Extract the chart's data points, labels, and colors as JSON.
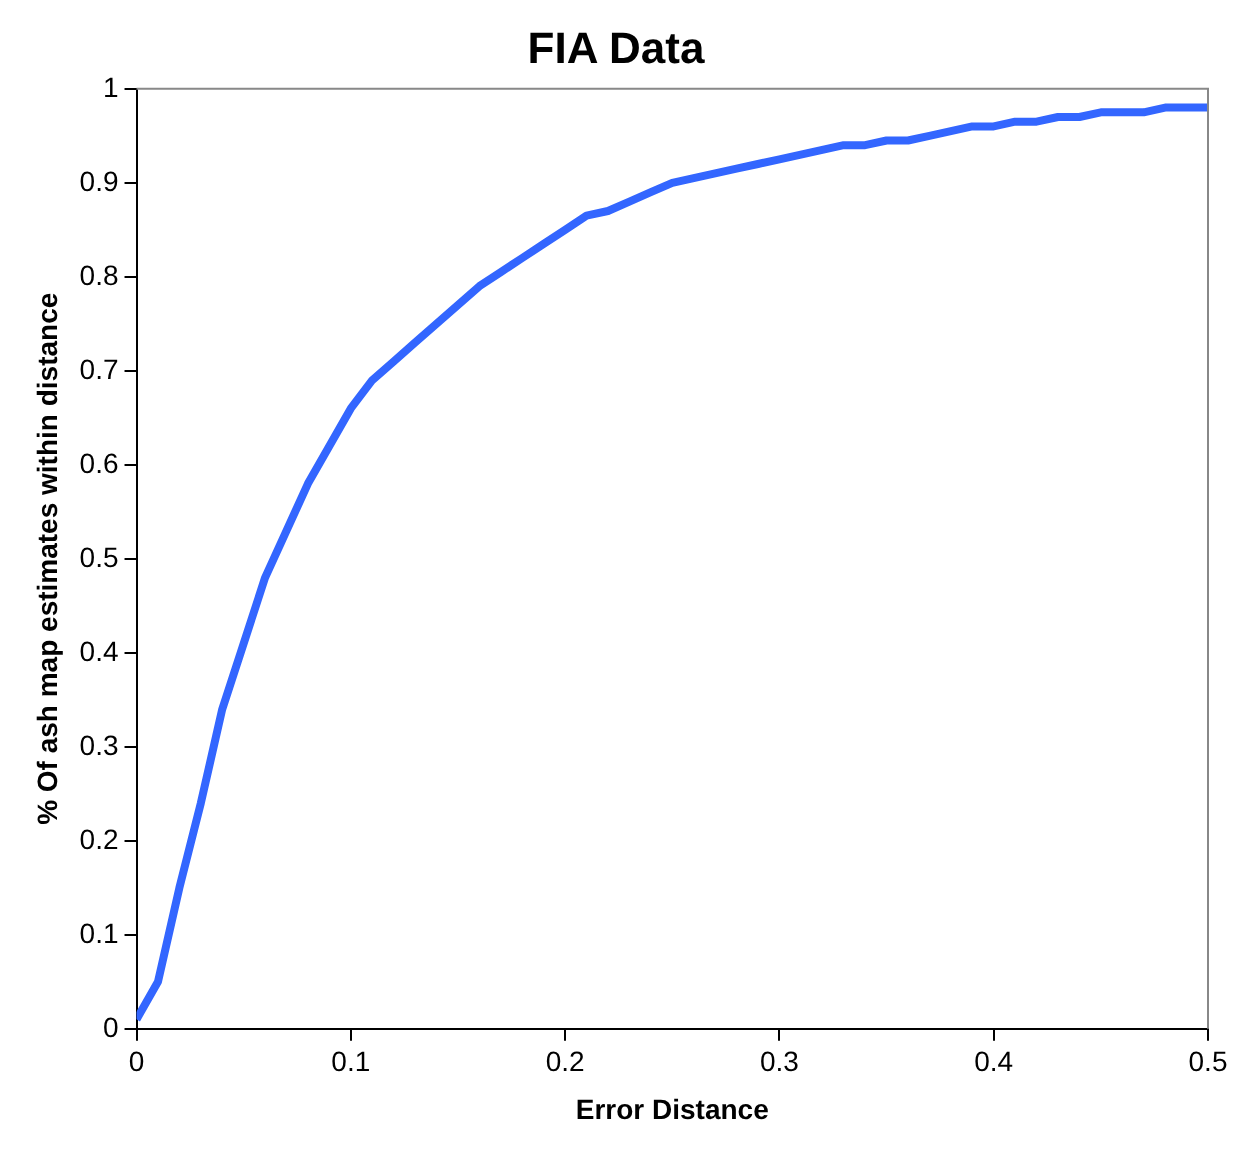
{
  "chart_data": {
    "type": "line",
    "title": "FIA Data",
    "xlabel": "Error Distance",
    "ylabel": "% Of ash map estimates within distance",
    "x": [
      0,
      0.01,
      0.02,
      0.03,
      0.04,
      0.05,
      0.06,
      0.07,
      0.08,
      0.09,
      0.1,
      0.11,
      0.12,
      0.13,
      0.14,
      0.15,
      0.16,
      0.17,
      0.18,
      0.19,
      0.2,
      0.21,
      0.22,
      0.23,
      0.24,
      0.25,
      0.26,
      0.27,
      0.28,
      0.29,
      0.3,
      0.31,
      0.32,
      0.33,
      0.34,
      0.35,
      0.36,
      0.37,
      0.38,
      0.39,
      0.4,
      0.41,
      0.42,
      0.43,
      0.44,
      0.45,
      0.46,
      0.47,
      0.48,
      0.49,
      0.5
    ],
    "series": [
      {
        "color": "#3366ff",
        "values": [
          0.01,
          0.05,
          0.15,
          0.24,
          0.34,
          0.41,
          0.48,
          0.53,
          0.58,
          0.62,
          0.66,
          0.69,
          0.71,
          0.73,
          0.75,
          0.77,
          0.79,
          0.805,
          0.82,
          0.835,
          0.85,
          0.865,
          0.87,
          0.88,
          0.89,
          0.9,
          0.905,
          0.91,
          0.915,
          0.92,
          0.925,
          0.93,
          0.935,
          0.94,
          0.94,
          0.945,
          0.945,
          0.95,
          0.955,
          0.96,
          0.96,
          0.965,
          0.965,
          0.97,
          0.97,
          0.975,
          0.975,
          0.975,
          0.98,
          0.98,
          0.98
        ]
      }
    ],
    "xlim": [
      0,
      0.5
    ],
    "xticks": [
      0,
      0.1,
      0.2,
      0.3,
      0.4,
      0.5
    ],
    "ylim": [
      0,
      1
    ],
    "yticks": [
      0,
      0.1,
      0.2,
      0.3,
      0.4,
      0.5,
      0.6,
      0.7,
      0.8,
      0.9,
      1
    ],
    "grid": false,
    "legend": false,
    "marker": "none",
    "line_style": "solid"
  }
}
